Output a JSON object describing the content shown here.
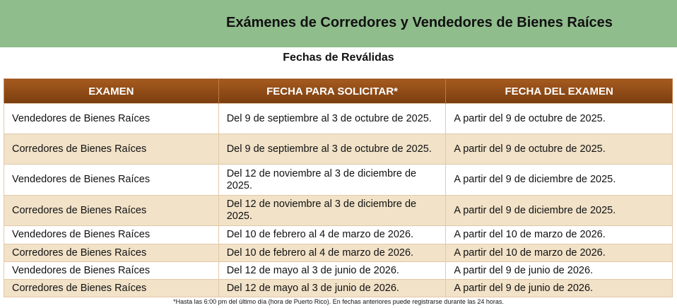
{
  "header": {
    "title": "Exámenes de Corredores y Vendedores de Bienes Raíces"
  },
  "subtitle": "Fechas de Reválidas",
  "table": {
    "columns": [
      "EXAMEN",
      "FECHA PARA SOLICITAR*",
      "FECHA DEL EXAMEN"
    ],
    "rows": [
      [
        "Vendedores de Bienes Raíces",
        "Del 9 de septiembre al 3 de octubre de 2025.",
        "A partir del 9 de octubre de 2025."
      ],
      [
        "Corredores de Bienes Raíces",
        "Del 9 de septiembre al 3 de octubre de 2025.",
        "A partir del 9 de octubre de 2025."
      ],
      [
        "Vendedores de Bienes Raíces",
        "Del 12 de noviembre al 3 de diciembre de 2025.",
        "A partir del 9 de diciembre de 2025."
      ],
      [
        "Corredores de Bienes Raíces",
        "Del 12 de noviembre al 3 de diciembre de 2025.",
        "A partir del 9 de diciembre de 2025."
      ],
      [
        "Vendedores de Bienes Raíces",
        "Del 10 de febrero al 4 de marzo de 2026.",
        "A partir del 10 de marzo de 2026."
      ],
      [
        "Corredores de Bienes Raíces",
        "Del 10 de febrero al 4 de marzo de 2026.",
        "A partir del 10 de marzo de 2026."
      ],
      [
        "Vendedores de Bienes Raíces",
        "Del 12 de mayo al 3 de junio de 2026.",
        "A partir del 9 de junio de 2026."
      ],
      [
        "Corredores de Bienes Raíces",
        "Del 12 de mayo al 3 de junio de 2026.",
        "A partir del 9 de junio de 2026."
      ]
    ]
  },
  "footnote": "*Hasta las 6:00 pm del último día (hora de Puerto Rico). En fechas anteriores puede registrarse durante las 24 horas.",
  "colors": {
    "banner": "#8fbd8c",
    "header": "#8b4513",
    "alt_row": "#f1e2c8"
  }
}
